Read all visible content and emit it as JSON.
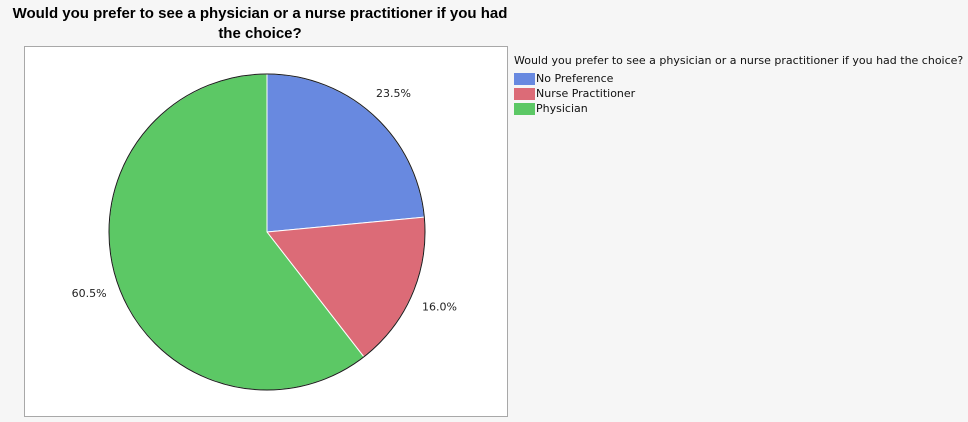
{
  "chart_data": {
    "type": "pie",
    "title": "Would you prefer to see a physician or a nurse practitioner if you had the choice?",
    "legend_title": "Would you prefer to see a physician or a nurse practitioner if you had the choice?",
    "legend_position": "right",
    "slices": [
      {
        "name": "No Preference",
        "value": 23.5,
        "label": "23.5%",
        "color": "#6889e0"
      },
      {
        "name": "Nurse Practitioner",
        "value": 16.0,
        "label": "16.0%",
        "color": "#dc6b77"
      },
      {
        "name": "Physician",
        "value": 60.5,
        "label": "60.5%",
        "color": "#5cc865"
      }
    ]
  }
}
